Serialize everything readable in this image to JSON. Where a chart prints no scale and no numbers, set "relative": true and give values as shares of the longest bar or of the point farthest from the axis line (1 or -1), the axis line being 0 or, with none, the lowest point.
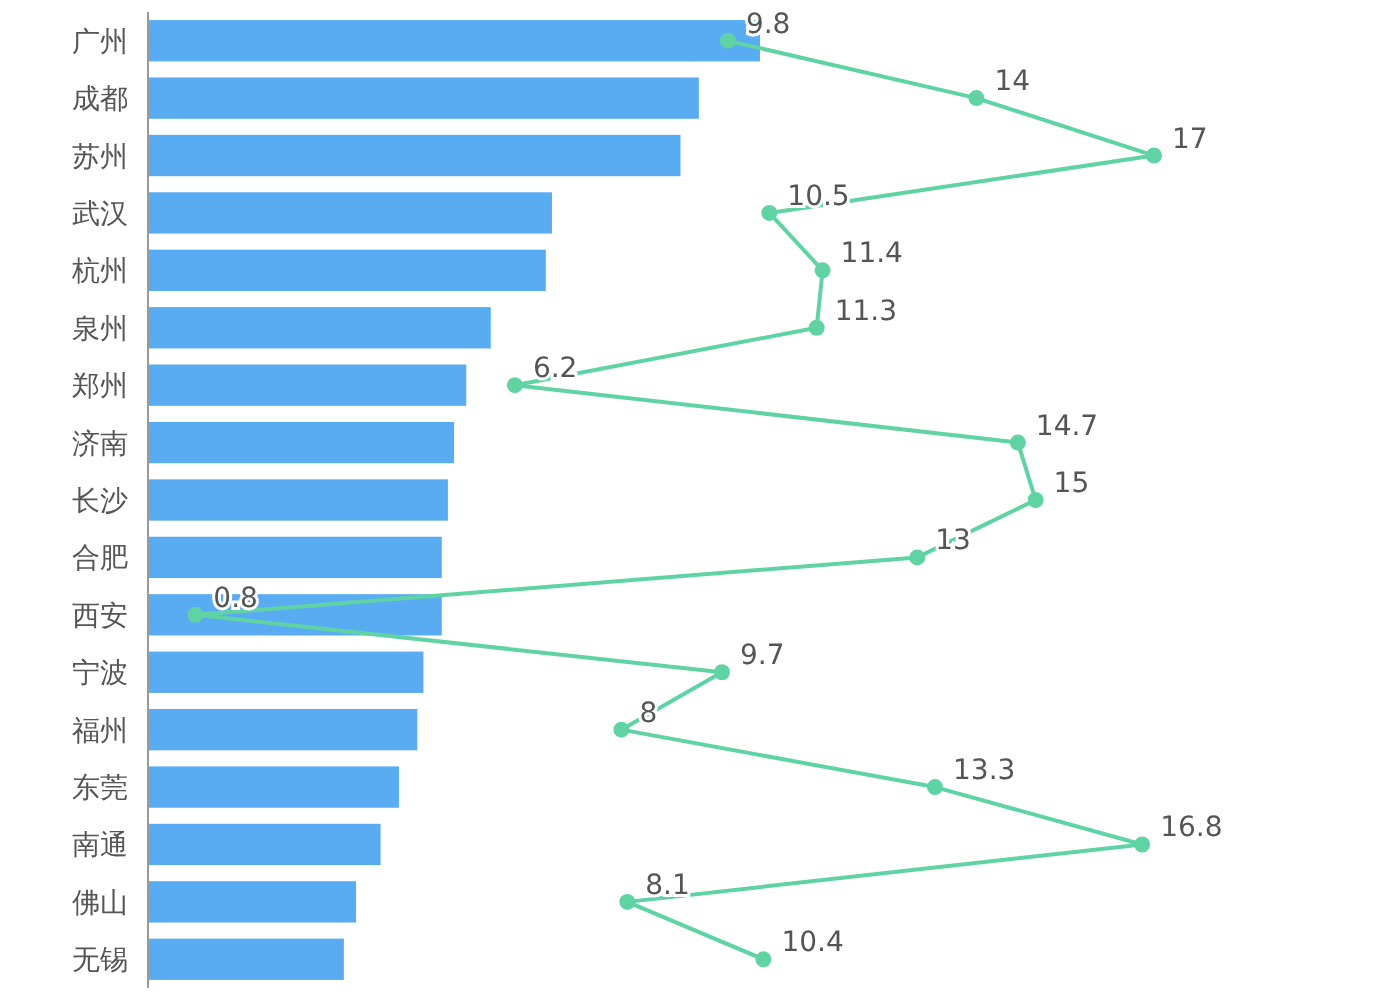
{
  "chart_data": [
    {
      "type": "bar",
      "orientation": "horizontal",
      "relative": true,
      "color": "#59acf2",
      "categories": [
        "广州",
        "成都",
        "苏州",
        "武汉",
        "杭州",
        "泉州",
        "郑州",
        "济南",
        "长沙",
        "合肥",
        "西安",
        "宁波",
        "福州",
        "东莞",
        "南通",
        "佛山",
        "无锡"
      ],
      "values": [
        1,
        0.9,
        0.87,
        0.66,
        0.65,
        0.56,
        0.52,
        0.5,
        0.49,
        0.48,
        0.48,
        0.45,
        0.44,
        0.41,
        0.38,
        0.34,
        0.32
      ]
    },
    {
      "type": "line",
      "orientation": "horizontal",
      "marker": "circle",
      "data_labels": true,
      "color": "#5fd3a4",
      "categories": [
        null,
        null,
        null,
        null,
        null,
        null,
        null,
        null,
        null,
        null,
        null,
        null,
        null,
        null,
        null,
        null,
        null
      ],
      "values": [
        9.8,
        14,
        17,
        10.5,
        11.4,
        11.3,
        6.2,
        14.7,
        15,
        13,
        0.8,
        9.7,
        8,
        13.3,
        16.8,
        8.1,
        10.4
      ]
    }
  ]
}
